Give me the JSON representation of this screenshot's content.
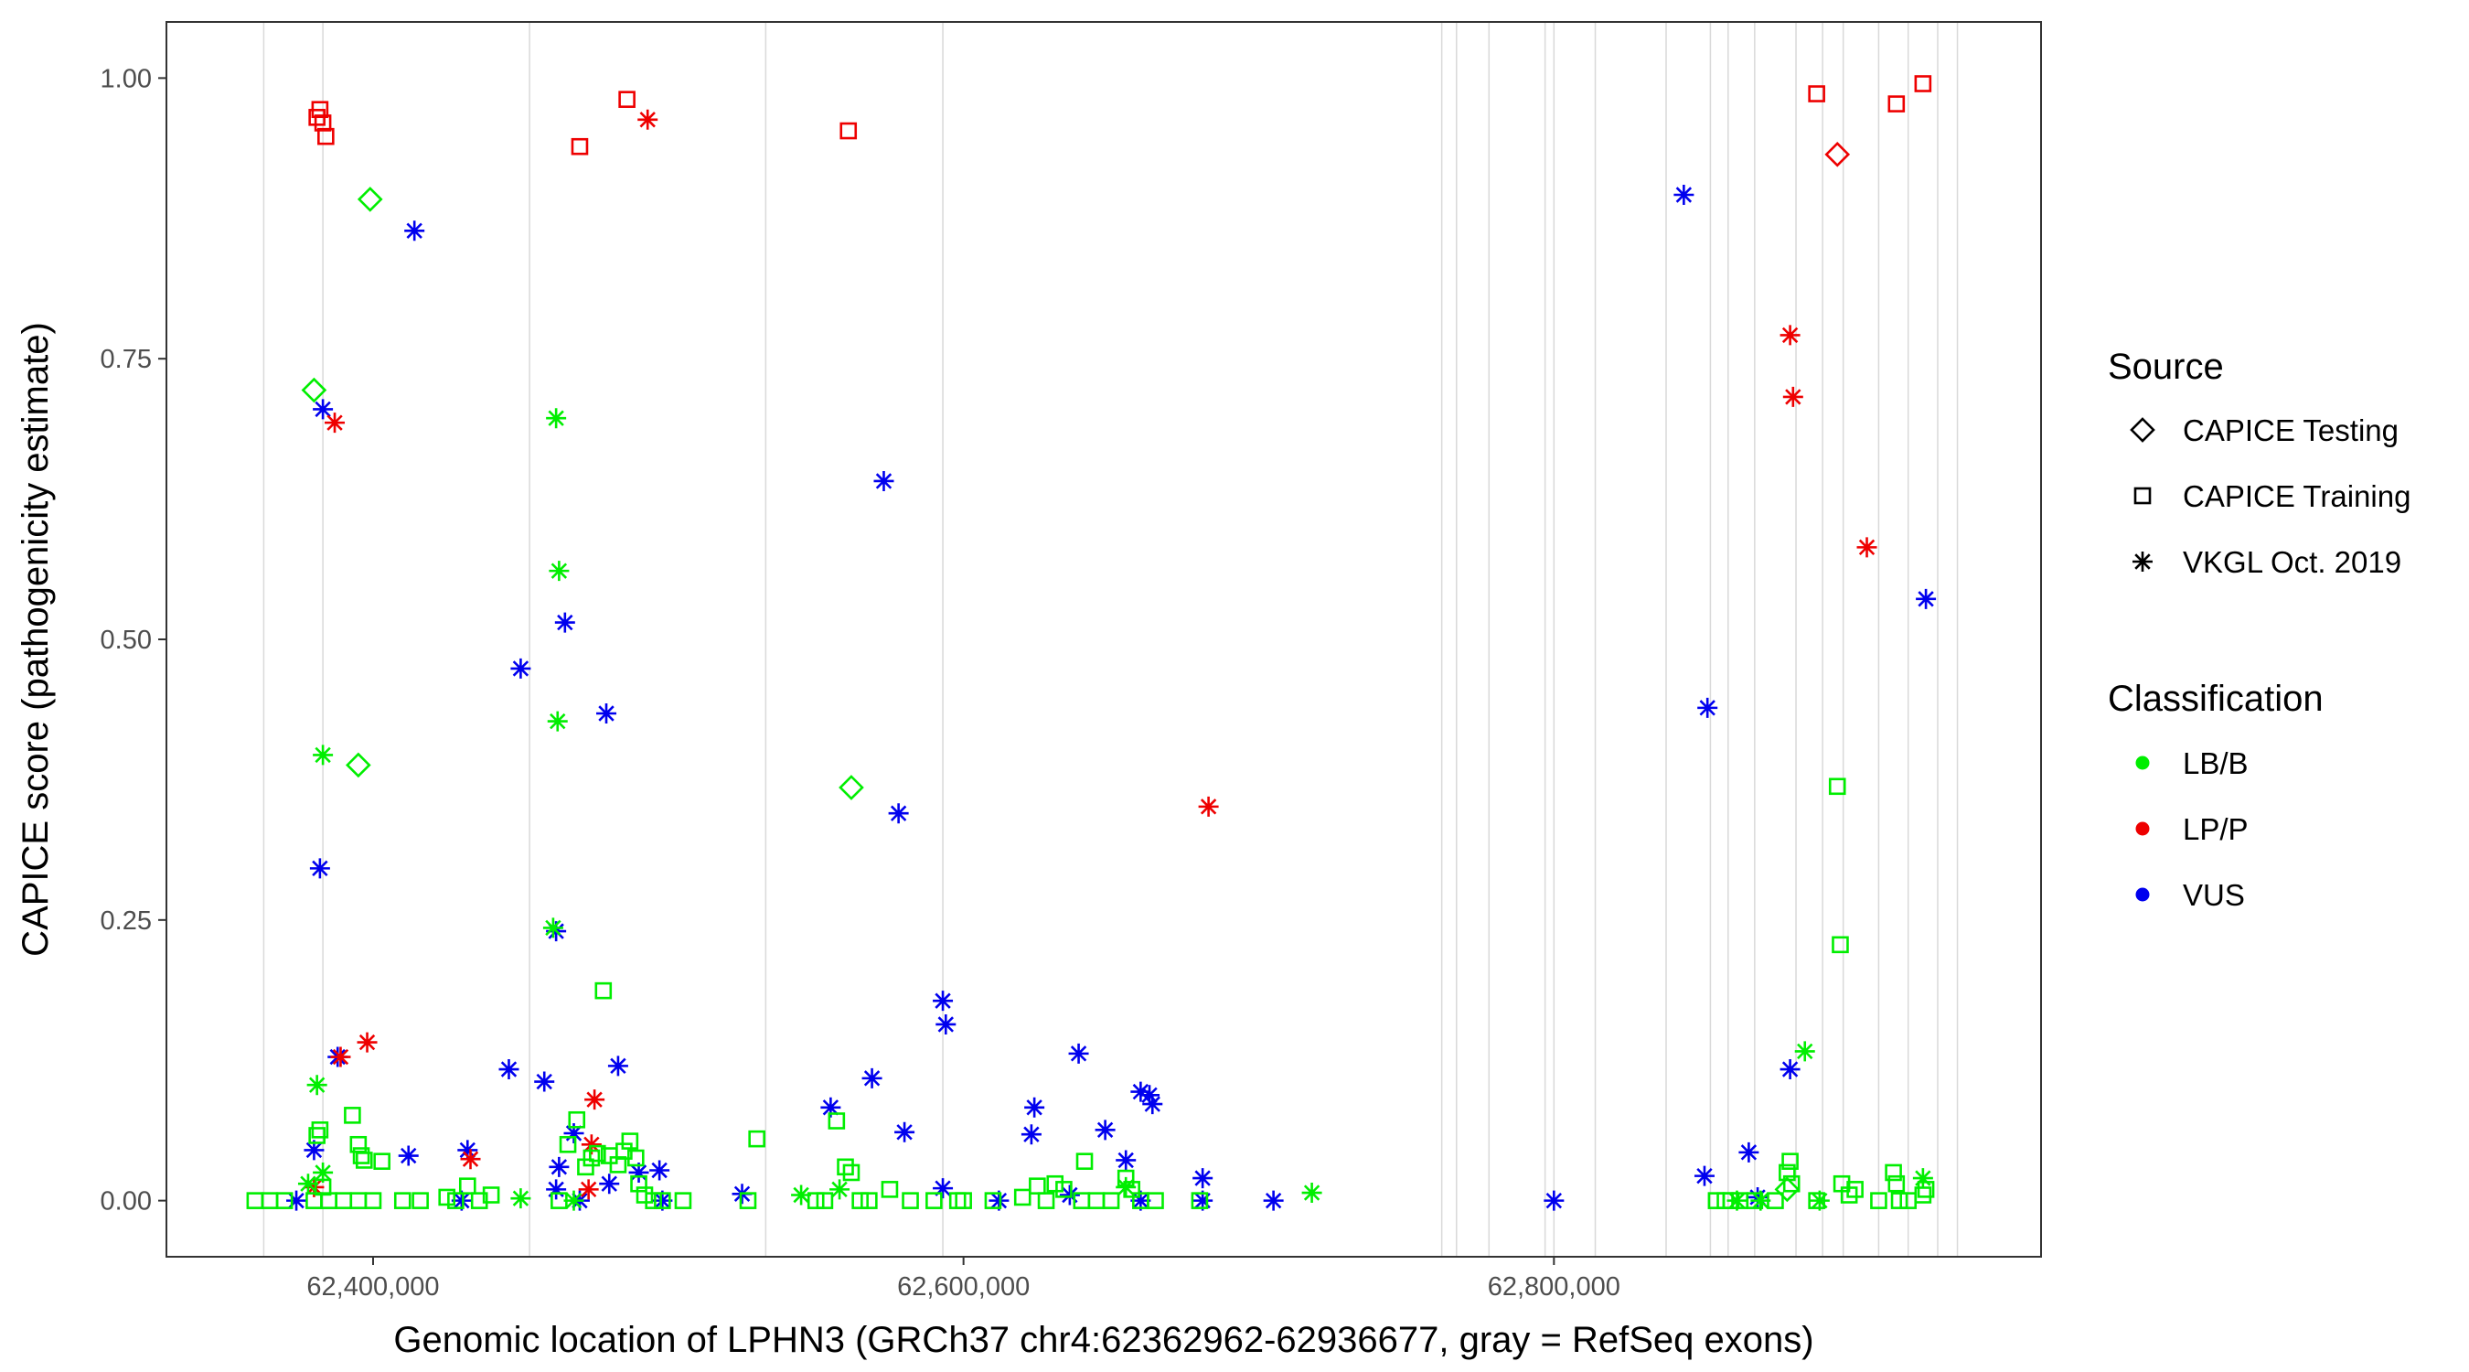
{
  "chart_data": {
    "type": "scatter",
    "title": "",
    "xlabel": "Genomic location of LPHN3 (GRCh37 chr4:62362962-62936677, gray = RefSeq exons)",
    "ylabel": "CAPICE score (pathogenicity estimate)",
    "xlim": [
      62330000,
      62965000
    ],
    "ylim": [
      -0.05,
      1.05
    ],
    "x_ticks": [
      62400000,
      62600000,
      62800000
    ],
    "x_tick_labels": [
      "62,400,000",
      "62,600,000",
      "62,800,000"
    ],
    "y_ticks": [
      0,
      0.25,
      0.5,
      0.75,
      1
    ],
    "y_tick_labels": [
      "0.00",
      "0.25",
      "0.50",
      "0.75",
      "1.00"
    ],
    "grid": false,
    "exons": [
      62362962,
      62383000,
      62453000,
      62533000,
      62593000,
      62762000,
      62767000,
      62778000,
      62797000,
      62800000,
      62814000,
      62838000,
      62853000,
      62859000,
      62868000,
      62882000,
      62891000,
      62898000,
      62910000,
      62920000,
      62930000,
      62936677
    ],
    "legend": {
      "placement": "right",
      "source_title": "Source",
      "source_items": [
        {
          "label": "CAPICE Testing",
          "shape": "diamond"
        },
        {
          "label": "CAPICE Training",
          "shape": "square"
        },
        {
          "label": "VKGL Oct. 2019",
          "shape": "asterisk"
        }
      ],
      "class_title": "Classification",
      "class_items": [
        {
          "label": "LB/B",
          "color": "#00ee00"
        },
        {
          "label": "LP/P",
          "color": "#ee0000"
        },
        {
          "label": "VUS",
          "color": "#0000ee"
        }
      ]
    },
    "colors": {
      "LB/B": "#00ee00",
      "LP/P": "#ee0000",
      "VUS": "#0000ee"
    },
    "series": [
      {
        "source": "CAPICE Training",
        "class": "LP/P",
        "points": [
          [
            62381000,
            0.965
          ],
          [
            62382000,
            0.972
          ],
          [
            62383000,
            0.96
          ],
          [
            62384000,
            0.948
          ],
          [
            62470000,
            0.939
          ],
          [
            62486000,
            0.981
          ],
          [
            62561000,
            0.953
          ],
          [
            62889000,
            0.986
          ],
          [
            62916000,
            0.977
          ],
          [
            62925000,
            0.995
          ]
        ]
      },
      {
        "source": "CAPICE Testing",
        "class": "LP/P",
        "points": [
          [
            62896000,
            0.932
          ]
        ]
      },
      {
        "source": "CAPICE Testing",
        "class": "LB/B",
        "points": [
          [
            62399000,
            0.892
          ],
          [
            62380000,
            0.722
          ],
          [
            62395000,
            0.388
          ],
          [
            62562000,
            0.368
          ],
          [
            62879000,
            0.01
          ]
        ]
      },
      {
        "source": "VKGL Oct. 2019",
        "class": "VUS",
        "points": [
          [
            62414000,
            0.864
          ],
          [
            62383000,
            0.705
          ],
          [
            62450000,
            0.474
          ],
          [
            62465000,
            0.515
          ],
          [
            62479000,
            0.434
          ],
          [
            62382000,
            0.296
          ],
          [
            62462000,
            0.24
          ],
          [
            62573000,
            0.641
          ],
          [
            62578000,
            0.345
          ],
          [
            62593000,
            0.178
          ],
          [
            62594000,
            0.157
          ],
          [
            62569000,
            0.109
          ],
          [
            62580000,
            0.061
          ],
          [
            62555000,
            0.083
          ],
          [
            62624000,
            0.083
          ],
          [
            62639000,
            0.131
          ],
          [
            62648000,
            0.063
          ],
          [
            62623000,
            0.059
          ],
          [
            62655000,
            0.036
          ],
          [
            62660000,
            0.097
          ],
          [
            62663000,
            0.094
          ],
          [
            62664000,
            0.086
          ],
          [
            62681000,
            0.02
          ],
          [
            62446000,
            0.117
          ],
          [
            62483000,
            0.12
          ],
          [
            62458000,
            0.106
          ],
          [
            62468000,
            0.06
          ],
          [
            62412000,
            0.04
          ],
          [
            62432000,
            0.045
          ],
          [
            62380000,
            0.045
          ],
          [
            62388000,
            0.128
          ],
          [
            62844000,
            0.896
          ],
          [
            62852000,
            0.439
          ],
          [
            62880000,
            0.117
          ],
          [
            62926000,
            0.536
          ],
          [
            62866000,
            0.043
          ],
          [
            62851000,
            0.022
          ],
          [
            62593000,
            0.011
          ],
          [
            62525000,
            0.006
          ],
          [
            62705000,
            0.0
          ],
          [
            62800000,
            0.0
          ],
          [
            62612000,
            0.0
          ],
          [
            62660000,
            0.0
          ],
          [
            62636000,
            0.005
          ],
          [
            62498000,
            0.0
          ],
          [
            62463000,
            0.03
          ],
          [
            62480000,
            0.015
          ],
          [
            62490000,
            0.025
          ],
          [
            62462000,
            0.01
          ],
          [
            62497000,
            0.027
          ],
          [
            62374000,
            0.0
          ],
          [
            62430000,
            0.0
          ],
          [
            62470000,
            0.0
          ],
          [
            62869000,
            0.003
          ],
          [
            62681000,
            0.0
          ]
        ]
      },
      {
        "source": "VKGL Oct. 2019",
        "class": "LP/P",
        "points": [
          [
            62493000,
            0.963
          ],
          [
            62387000,
            0.693
          ],
          [
            62389000,
            0.128
          ],
          [
            62398000,
            0.141
          ],
          [
            62433000,
            0.037
          ],
          [
            62475000,
            0.09
          ],
          [
            62474000,
            0.05
          ],
          [
            62473000,
            0.01
          ],
          [
            62380000,
            0.012
          ],
          [
            62683000,
            0.351
          ],
          [
            62880000,
            0.771
          ],
          [
            62881000,
            0.716
          ],
          [
            62906000,
            0.582
          ]
        ]
      },
      {
        "source": "VKGL Oct. 2019",
        "class": "LB/B",
        "points": [
          [
            62462000,
            0.697
          ],
          [
            62463000,
            0.561
          ],
          [
            62462500,
            0.427
          ],
          [
            62461000,
            0.243
          ],
          [
            62383000,
            0.397
          ],
          [
            62381000,
            0.103
          ],
          [
            62383000,
            0.025
          ],
          [
            62378000,
            0.015
          ],
          [
            62885000,
            0.133
          ],
          [
            62925000,
            0.02
          ],
          [
            62718000,
            0.007
          ],
          [
            62450000,
            0.002
          ],
          [
            62468000,
            0.0
          ],
          [
            62545000,
            0.005
          ],
          [
            62558000,
            0.01
          ],
          [
            62655000,
            0.012
          ],
          [
            62862000,
            0.0
          ],
          [
            62870000,
            0.0
          ],
          [
            62890000,
            0.0
          ]
        ]
      },
      {
        "source": "CAPICE Training",
        "class": "LB/B",
        "points": [
          [
            62382000,
            0.063
          ],
          [
            62381000,
            0.058
          ],
          [
            62393000,
            0.076
          ],
          [
            62395000,
            0.05
          ],
          [
            62396000,
            0.04
          ],
          [
            62397000,
            0.036
          ],
          [
            62403000,
            0.035
          ],
          [
            62383000,
            0.012
          ],
          [
            62380000,
            0.0
          ],
          [
            62385000,
            0.0
          ],
          [
            62390000,
            0.0
          ],
          [
            62395000,
            0.0
          ],
          [
            62400000,
            0.0
          ],
          [
            62410000,
            0.0
          ],
          [
            62416000,
            0.0
          ],
          [
            62425000,
            0.003
          ],
          [
            62428000,
            0.0
          ],
          [
            62432000,
            0.013
          ],
          [
            62436000,
            0.0
          ],
          [
            62440000,
            0.005
          ],
          [
            62360000,
            0.0
          ],
          [
            62365000,
            0.0
          ],
          [
            62370000,
            0.0
          ],
          [
            62463000,
            0.0
          ],
          [
            62466000,
            0.05
          ],
          [
            62469000,
            0.072
          ],
          [
            62472000,
            0.03
          ],
          [
            62474000,
            0.038
          ],
          [
            62476000,
            0.042
          ],
          [
            62478000,
            0.187
          ],
          [
            62480000,
            0.04
          ],
          [
            62483000,
            0.032
          ],
          [
            62485000,
            0.044
          ],
          [
            62487000,
            0.053
          ],
          [
            62489000,
            0.038
          ],
          [
            62490000,
            0.015
          ],
          [
            62492000,
            0.005
          ],
          [
            62495000,
            0.0
          ],
          [
            62498000,
            0.0
          ],
          [
            62505000,
            0.0
          ],
          [
            62527000,
            0.0
          ],
          [
            62530000,
            0.055
          ],
          [
            62557000,
            0.071
          ],
          [
            62560000,
            0.03
          ],
          [
            62562000,
            0.025
          ],
          [
            62565000,
            0.0
          ],
          [
            62568000,
            0.0
          ],
          [
            62550000,
            0.0
          ],
          [
            62553000,
            0.0
          ],
          [
            62575000,
            0.01
          ],
          [
            62582000,
            0.0
          ],
          [
            62590000,
            0.0
          ],
          [
            62598000,
            0.0
          ],
          [
            62600000,
            0.0
          ],
          [
            62610000,
            0.0
          ],
          [
            62620000,
            0.003
          ],
          [
            62625000,
            0.013
          ],
          [
            62628000,
            0.0
          ],
          [
            62631000,
            0.015
          ],
          [
            62634000,
            0.01
          ],
          [
            62640000,
            0.0
          ],
          [
            62645000,
            0.0
          ],
          [
            62650000,
            0.0
          ],
          [
            62655000,
            0.02
          ],
          [
            62657000,
            0.01
          ],
          [
            62641000,
            0.035
          ],
          [
            62660000,
            0.0
          ],
          [
            62665000,
            0.0
          ],
          [
            62680000,
            0.0
          ],
          [
            62855000,
            0.0
          ],
          [
            62858000,
            0.0
          ],
          [
            62860000,
            0.0
          ],
          [
            62863000,
            0.0
          ],
          [
            62868000,
            0.0
          ],
          [
            62875000,
            0.0
          ],
          [
            62879000,
            0.025
          ],
          [
            62880000,
            0.035
          ],
          [
            62880500,
            0.015
          ],
          [
            62889000,
            0.0
          ],
          [
            62896000,
            0.369
          ],
          [
            62897000,
            0.228
          ],
          [
            62897500,
            0.015
          ],
          [
            62900000,
            0.005
          ],
          [
            62902000,
            0.01
          ],
          [
            62910000,
            0.0
          ],
          [
            62915000,
            0.025
          ],
          [
            62916000,
            0.015
          ],
          [
            62917000,
            0.0
          ],
          [
            62920000,
            0.0
          ],
          [
            62925000,
            0.005
          ],
          [
            62926000,
            0.01
          ]
        ]
      }
    ]
  }
}
